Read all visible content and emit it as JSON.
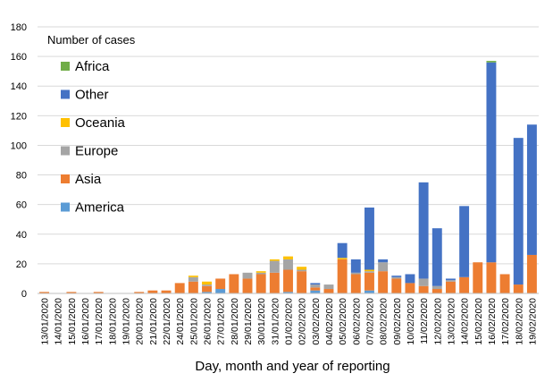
{
  "chart_data": {
    "type": "bar",
    "stacked": true,
    "xlabel": "Day, month and year of reporting",
    "ylim": [
      0,
      180
    ],
    "yticks": [
      0,
      20,
      40,
      60,
      80,
      100,
      120,
      140,
      160,
      180
    ],
    "legend_title": "Number of cases",
    "legend_placement": "top-left",
    "categories": [
      "13/01/2020",
      "14/01/2020",
      "15/01/2020",
      "16/01/2020",
      "17/01/2020",
      "18/01/2020",
      "19/01/2020",
      "20/01/2020",
      "21/01/2020",
      "22/01/2020",
      "24/01/2020",
      "25/01/2020",
      "26/01/2020",
      "27/01/2020",
      "28/01/2020",
      "29/01/2020",
      "30/01/2020",
      "31/01/2020",
      "01/02/2020",
      "02/02/2020",
      "03/02/2020",
      "04/02/2020",
      "05/02/2020",
      "06/02/2020",
      "07/02/2020",
      "08/02/2020",
      "09/02/2020",
      "10/02/2020",
      "11/02/2020",
      "12/02/2020",
      "13/02/2020",
      "14/02/2020",
      "15/02/2020",
      "16/02/2020",
      "17/02/2020",
      "18/02/2020",
      "19/02/2020"
    ],
    "series": [
      {
        "name": "America",
        "color": "#5B9BD5",
        "values": [
          0,
          0,
          0,
          0,
          0,
          0,
          0,
          0,
          0,
          0,
          0,
          0,
          1,
          3,
          0,
          0,
          0,
          0,
          1,
          0,
          2,
          0,
          0,
          0,
          2,
          0,
          0,
          0,
          0,
          0,
          0,
          0,
          0,
          0,
          0,
          0,
          0
        ]
      },
      {
        "name": "Asia",
        "color": "#ED7D31",
        "values": [
          1,
          0,
          1,
          0,
          1,
          0,
          0,
          1,
          2,
          2,
          7,
          8,
          4,
          7,
          13,
          10,
          13,
          14,
          15,
          15,
          2,
          3,
          23,
          13,
          12,
          15,
          10,
          7,
          5,
          3,
          8,
          11,
          21,
          21,
          13,
          6,
          26
        ]
      },
      {
        "name": "Europe",
        "color": "#A5A5A5",
        "values": [
          0,
          0,
          0,
          0,
          0,
          0,
          0,
          0,
          0,
          0,
          0,
          3,
          1,
          0,
          0,
          4,
          1,
          8,
          7,
          1,
          2,
          3,
          0,
          1,
          1,
          6,
          1,
          0,
          5,
          2,
          1,
          0,
          0,
          0,
          0,
          0,
          0
        ]
      },
      {
        "name": "Oceania",
        "color": "#FFC000",
        "values": [
          0,
          0,
          0,
          0,
          0,
          0,
          0,
          0,
          0,
          0,
          0,
          1,
          2,
          0,
          0,
          0,
          1,
          1,
          2,
          2,
          0,
          0,
          1,
          0,
          1,
          0,
          0,
          0,
          0,
          0,
          0,
          0,
          0,
          0,
          0,
          0,
          0
        ]
      },
      {
        "name": "Other",
        "color": "#4472C4",
        "values": [
          0,
          0,
          0,
          0,
          0,
          0,
          0,
          0,
          0,
          0,
          0,
          0,
          0,
          0,
          0,
          0,
          0,
          0,
          0,
          0,
          1,
          0,
          10,
          9,
          42,
          2,
          1,
          6,
          65,
          39,
          1,
          48,
          0,
          135,
          0,
          99,
          88
        ]
      },
      {
        "name": "Africa",
        "color": "#70AD47",
        "values": [
          0,
          0,
          0,
          0,
          0,
          0,
          0,
          0,
          0,
          0,
          0,
          0,
          0,
          0,
          0,
          0,
          0,
          0,
          0,
          0,
          0,
          0,
          0,
          0,
          0,
          0,
          0,
          0,
          0,
          0,
          0,
          0,
          0,
          1,
          0,
          0,
          0
        ]
      }
    ],
    "legend_order": [
      "Africa",
      "Other",
      "Oceania",
      "Europe",
      "Asia",
      "America"
    ]
  }
}
